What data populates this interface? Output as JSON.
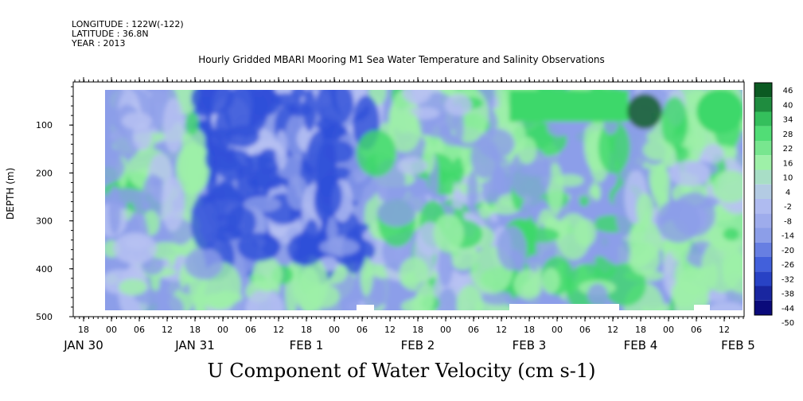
{
  "header": {
    "longitude": "LONGITUDE : 122W(-122)",
    "latitude": "LATITUDE : 36.8N",
    "year": "YEAR : 2013"
  },
  "chart_data": {
    "type": "heatmap",
    "title": "Hourly Gridded MBARI Mooring M1 Sea Water Temperature and Salinity Observations",
    "xlabel": "U Component of Water Velocity (cm s-1)",
    "ylabel": "DEPTH (m)",
    "y_ticks": [
      100,
      200,
      300,
      400,
      500
    ],
    "ylim": [
      500,
      10
    ],
    "x_hour_ticks": [
      "18",
      "00",
      "06",
      "12",
      "18",
      "00",
      "06",
      "12",
      "18",
      "00",
      "06",
      "12",
      "18",
      "00",
      "06",
      "12",
      "18",
      "00",
      "06",
      "12",
      "18",
      "00",
      "06",
      "12"
    ],
    "x_date_labels": [
      {
        "label": "JAN 30",
        "hours": -6
      },
      {
        "label": "JAN 31",
        "hours": 18
      },
      {
        "label": "FEB  1",
        "hours": 42
      },
      {
        "label": "FEB  2",
        "hours": 66
      },
      {
        "label": "FEB  3",
        "hours": 90
      },
      {
        "label": "FEB  4",
        "hours": 114
      },
      {
        "label": "FEB  5",
        "hours": 135
      }
    ],
    "x_hour_first": -6,
    "x_hour_last": 138,
    "colorbar_levels": [
      "46",
      "40",
      "34",
      "28",
      "22",
      "16",
      "10",
      "4",
      "-2",
      "-8",
      "-14",
      "-20",
      "-26",
      "-32",
      "-38",
      "-44",
      "-50"
    ],
    "colors": {
      "strong_negative": "#0a0a7a",
      "negative": "#3050d8",
      "weak_negative": "#8c9ee8",
      "near_zero": "#b8c2f2",
      "weak_positive": "#9ef0a8",
      "positive": "#3ed86a",
      "strong_positive": "#0b5a22"
    }
  }
}
